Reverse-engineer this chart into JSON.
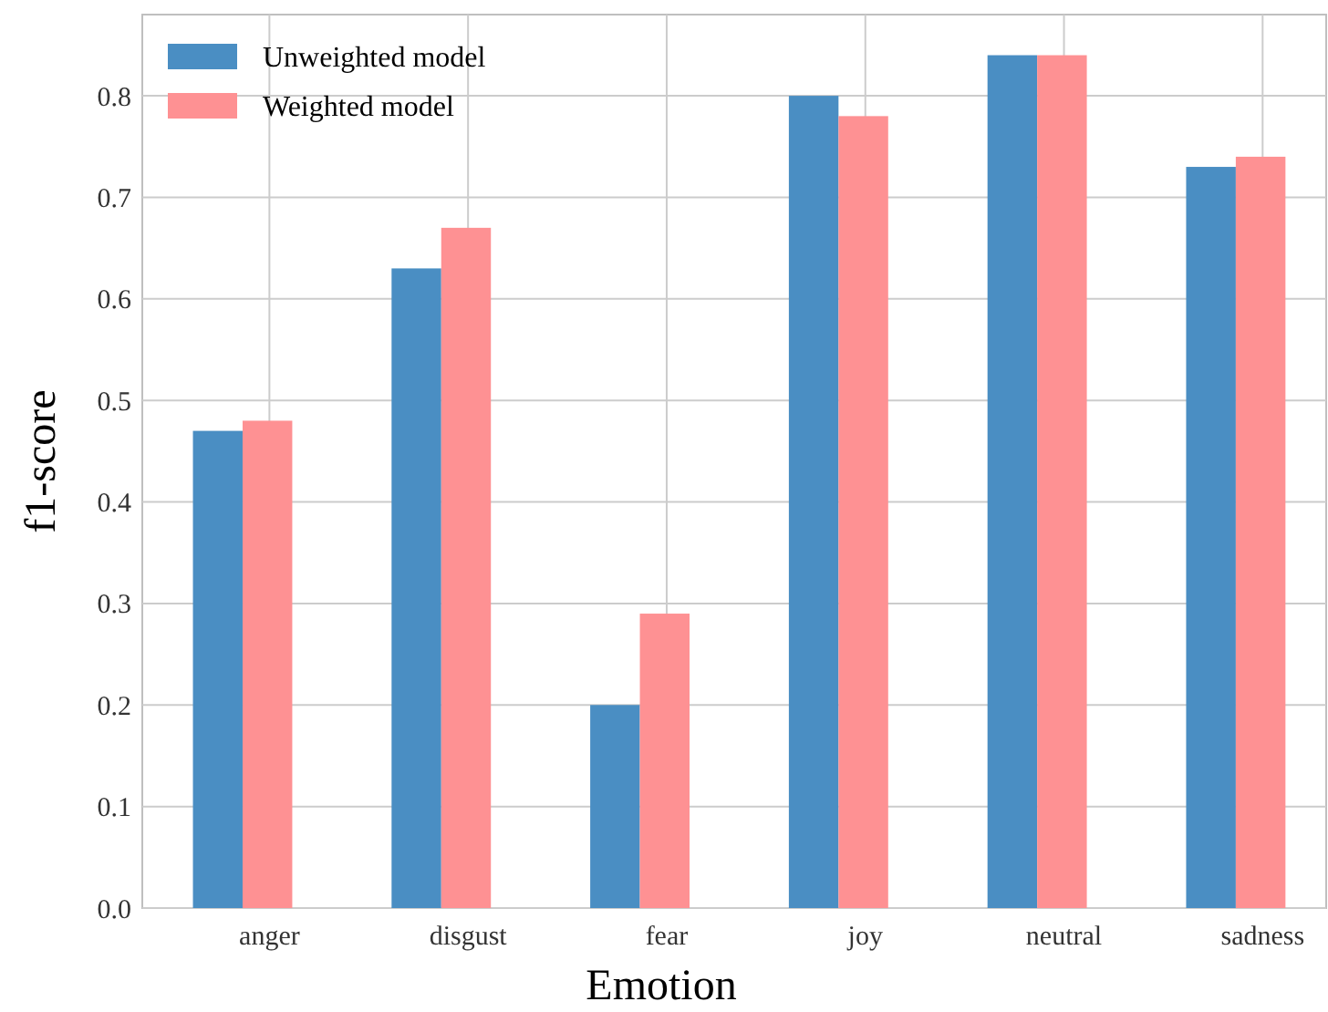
{
  "chart_data": {
    "type": "bar",
    "xlabel": "Emotion",
    "ylabel": "f1-score",
    "categories": [
      "anger",
      "disgust",
      "fear",
      "joy",
      "neutral",
      "sadness"
    ],
    "series": [
      {
        "name": "Unweighted model",
        "color": "#4a8ec3",
        "values": [
          0.47,
          0.63,
          0.2,
          0.8,
          0.84,
          0.73
        ]
      },
      {
        "name": "Weighted model",
        "color": "#fe9193",
        "values": [
          0.48,
          0.67,
          0.29,
          0.78,
          0.84,
          0.74
        ]
      }
    ],
    "ylim": [
      0,
      0.88
    ],
    "yticks": [
      {
        "value": 0,
        "label": "0.0"
      },
      0.1,
      0.2,
      0.3,
      0.4,
      0.5,
      0.6,
      0.7,
      0.8
    ],
    "grid": true,
    "legend": "top left"
  }
}
